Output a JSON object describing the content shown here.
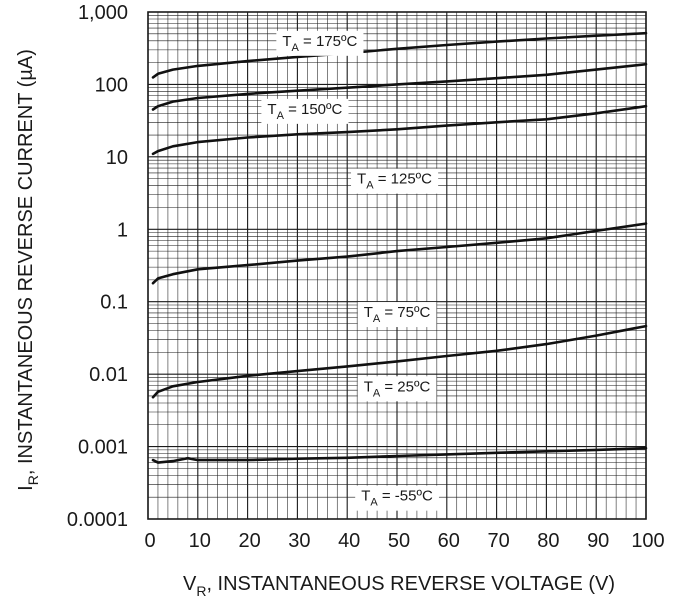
{
  "chart_data": {
    "type": "line",
    "xlabel_main": "V",
    "xlabel_sub": "R",
    "xlabel_rest": ", INSTANTANEOUS REVERSE VOLTAGE (V)",
    "ylabel_main": "I",
    "ylabel_sub": "R",
    "ylabel_rest": ", INSTANTANEOUS REVERSE CURRENT (µA)",
    "xlim": [
      0,
      100
    ],
    "ylim": [
      0.0001,
      1000
    ],
    "y_scale": "log",
    "grid": true,
    "x_ticks": [
      0,
      10,
      20,
      30,
      40,
      50,
      60,
      70,
      80,
      90,
      100
    ],
    "x_tick_labels": [
      "0",
      "10",
      "20",
      "30",
      "40",
      "50",
      "60",
      "70",
      "80",
      "90",
      "100"
    ],
    "y_ticks": [
      0.0001,
      0.001,
      0.01,
      0.1,
      1,
      10,
      100,
      1000
    ],
    "y_tick_labels": [
      "0.0001",
      "0.001",
      "0.01",
      "0.1",
      "1",
      "10",
      "100",
      "1,000"
    ],
    "series": [
      {
        "name": "T_A = 175ºC",
        "label_main": "T",
        "label_sub": "A",
        "label_rest": " = 175ºC",
        "x": [
          1,
          2,
          5,
          10,
          20,
          30,
          40,
          50,
          60,
          70,
          80,
          90,
          100
        ],
        "y": [
          125,
          140,
          160,
          180,
          210,
          240,
          270,
          310,
          350,
          390,
          430,
          470,
          510
        ]
      },
      {
        "name": "T_A = 150ºC",
        "label_main": "T",
        "label_sub": "A",
        "label_rest": " = 150ºC",
        "x": [
          1,
          2,
          5,
          10,
          20,
          30,
          40,
          50,
          60,
          70,
          80,
          90,
          100
        ],
        "y": [
          45,
          50,
          58,
          65,
          74,
          82,
          90,
          100,
          110,
          122,
          136,
          160,
          190
        ]
      },
      {
        "name": "T_A = 125ºC",
        "label_main": "T",
        "label_sub": "A",
        "label_rest": " = 125ºC",
        "x": [
          1,
          2,
          5,
          10,
          20,
          30,
          40,
          50,
          60,
          70,
          80,
          90,
          100
        ],
        "y": [
          11,
          12,
          14,
          16,
          18.5,
          20.5,
          22,
          24,
          27,
          30,
          33,
          40,
          50
        ]
      },
      {
        "name": "T_A = 75ºC",
        "label_main": "T",
        "label_sub": "A",
        "label_rest": " = 75ºC",
        "x": [
          1,
          2,
          5,
          10,
          20,
          30,
          40,
          50,
          60,
          70,
          80,
          90,
          100
        ],
        "y": [
          0.18,
          0.21,
          0.24,
          0.28,
          0.32,
          0.37,
          0.42,
          0.5,
          0.57,
          0.65,
          0.75,
          0.95,
          1.2
        ]
      },
      {
        "name": "T_A = 25ºC",
        "label_main": "T",
        "label_sub": "A",
        "label_rest": " = 25ºC",
        "x": [
          1,
          2,
          5,
          10,
          20,
          30,
          40,
          50,
          60,
          70,
          80,
          90,
          100
        ],
        "y": [
          0.0048,
          0.0057,
          0.0068,
          0.0078,
          0.0095,
          0.011,
          0.0128,
          0.015,
          0.0178,
          0.021,
          0.026,
          0.034,
          0.046
        ]
      },
      {
        "name": "T_A = -55ºC",
        "label_main": "T",
        "label_sub": "A",
        "label_rest": " = -55ºC",
        "x": [
          1,
          2,
          5,
          8,
          10,
          20,
          30,
          40,
          50,
          60,
          70,
          80,
          90,
          100
        ],
        "y": [
          0.00065,
          0.0006,
          0.00063,
          0.00069,
          0.00065,
          0.00065,
          0.00068,
          0.0007,
          0.00074,
          0.00078,
          0.00082,
          0.00086,
          0.0009,
          0.00095
        ]
      }
    ]
  }
}
